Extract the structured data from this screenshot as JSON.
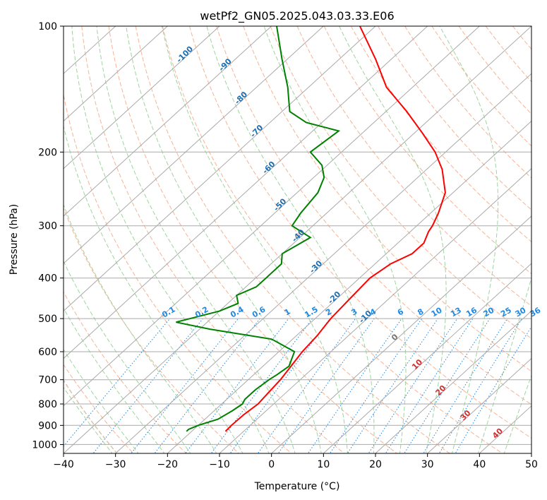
{
  "chart_data": {
    "type": "line",
    "diagram": "skew-T log-P",
    "title": "wetPf2_GN05.2025.043.03.33.E06",
    "xlabel": "Temperature (°C)",
    "ylabel": "Pressure (hPa)",
    "xlim": [
      -40,
      50
    ],
    "ylim": [
      1050,
      100
    ],
    "yscale": "log",
    "x_ticks": [
      -40,
      -30,
      -20,
      -10,
      0,
      10,
      20,
      30,
      40,
      50
    ],
    "y_ticks": [
      100,
      200,
      300,
      400,
      500,
      600,
      700,
      800,
      900,
      1000
    ],
    "grid": true,
    "colors": {
      "temperature": "#ff0000",
      "dewpoint": "#008000",
      "isotherm": "#aaaaaa",
      "dry_adiabat": "#f5b496",
      "moist_adiabat": "#9fd49f",
      "mixing_ratio": "#1e88e5",
      "ccl_curve": "#d8c4a8"
    },
    "series": [
      {
        "color": "temperature",
        "pressure": [
          930,
          900,
          850,
          800,
          750,
          700,
          650,
          600,
          550,
          500,
          450,
          400,
          370,
          350,
          330,
          310,
          300,
          280,
          250,
          220,
          200,
          180,
          160,
          140,
          120,
          100
        ],
        "values": [
          -13.5,
          -13.6,
          -13.5,
          -13.0,
          -13.4,
          -13.8,
          -14.6,
          -15.5,
          -16.0,
          -17.0,
          -17.5,
          -18.0,
          -17.0,
          -15.0,
          -15.0,
          -16.5,
          -17.0,
          -18.5,
          -21.5,
          -27.0,
          -32.0,
          -38.5,
          -46.0,
          -55.0,
          -63.0,
          -73.0
        ]
      },
      {
        "color": "dewpoint",
        "pressure": [
          930,
          920,
          900,
          870,
          830,
          800,
          780,
          760,
          740,
          700,
          680,
          650,
          600,
          560,
          530,
          510,
          480,
          460,
          440,
          420,
          400,
          370,
          350,
          320,
          300,
          280,
          250,
          230,
          215,
          200,
          178,
          170,
          160,
          140,
          120,
          100
        ],
        "values": [
          -21.0,
          -21.0,
          -20.0,
          -17.5,
          -16.5,
          -16.0,
          -16.5,
          -16.5,
          -16.5,
          -16.0,
          -15.5,
          -15.0,
          -17.0,
          -24.0,
          -38.0,
          -46.0,
          -40.0,
          -38.0,
          -40.0,
          -38.0,
          -38.0,
          -38.0,
          -40.0,
          -38.0,
          -44.0,
          -45.0,
          -46.0,
          -48.0,
          -51.0,
          -56.0,
          -55.0,
          -63.0,
          -68.5,
          -74.0,
          -81.0,
          -89.0
        ]
      }
    ],
    "isotherm_labels": [
      "-100",
      "-90",
      "-80",
      "-70",
      "-60",
      "-50",
      "-40",
      "-30",
      "-20",
      "-10",
      "0",
      "10",
      "20",
      "30",
      "40"
    ],
    "mixing_ratio_labels": [
      "0.1",
      "0.2",
      "0.4",
      "0.6",
      "1",
      "1.5",
      "2",
      "3",
      "4",
      "6",
      "8",
      "10",
      "13",
      "16",
      "20",
      "25",
      "30",
      "36"
    ]
  }
}
